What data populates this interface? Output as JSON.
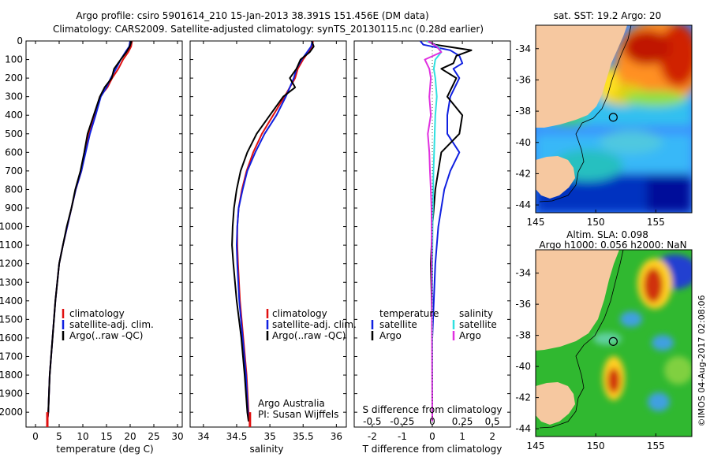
{
  "header": {
    "title_line1": "Argo profile: csiro 5901614_210 15-Jan-2013 38.391S 151.456E (DM data)",
    "title_line2": "Climatology: CARS2009. Satellite-adjusted climatology: synTS_20130115.nc (0.28d earlier)"
  },
  "colors": {
    "climatology": "#e01010",
    "satellite": "#1020e0",
    "argo": "#000000",
    "sal_satellite": "#30e0e0",
    "sal_argo": "#e030e0",
    "land": "#f6c8a0"
  },
  "chart_data": [
    {
      "type": "line",
      "panel": "temperature",
      "xlabel": "temperature (deg C)",
      "xlim": [
        -2,
        31
      ],
      "xticks": [
        "0",
        "5",
        "10",
        "15",
        "20",
        "25",
        "30"
      ],
      "ylim": [
        0,
        2080
      ],
      "yticks": [
        "0",
        "100",
        "200",
        "300",
        "400",
        "500",
        "600",
        "700",
        "800",
        "900",
        "1000",
        "1100",
        "1200",
        "1300",
        "1400",
        "1500",
        "1600",
        "1700",
        "1800",
        "1900",
        "2000"
      ],
      "legend": [
        "climatology",
        "satellite-adj. clim.",
        "Argo(..raw -QC)"
      ],
      "series": [
        {
          "name": "climatology",
          "color": "#e01010",
          "x": [
            20.4,
            20.2,
            19.6,
            18.5,
            17.5,
            16.2,
            15.2,
            13.6,
            12.5,
            11.3,
            10.5,
            9.7,
            8.5,
            7.6,
            6.7,
            5.8,
            5.0,
            4.2,
            3.6,
            3.0,
            2.7,
            2.5
          ],
          "y": [
            0,
            30,
            60,
            100,
            150,
            200,
            250,
            300,
            400,
            500,
            600,
            700,
            800,
            900,
            1000,
            1100,
            1200,
            1400,
            1600,
            1800,
            2000,
            2050
          ]
        },
        {
          "name": "satellite-adj. clim.",
          "color": "#1020e0",
          "x": [
            20.0,
            19.8,
            19.0,
            18.0,
            17.0,
            15.9,
            15.0,
            13.8,
            12.7,
            11.5,
            10.6,
            9.7,
            8.5,
            7.6,
            6.7,
            5.8,
            5.0,
            4.2,
            3.6,
            3.0,
            2.7,
            2.5
          ],
          "y": [
            0,
            30,
            60,
            100,
            150,
            200,
            250,
            300,
            400,
            500,
            600,
            700,
            800,
            900,
            1000,
            1100,
            1200,
            1400,
            1600,
            1800,
            2000,
            2050
          ]
        },
        {
          "name": "Argo(..raw -QC)",
          "color": "#000000",
          "x": [
            20.3,
            19.9,
            19.2,
            18.0,
            16.6,
            16.1,
            14.6,
            13.6,
            12.3,
            11.0,
            10.3,
            9.5,
            8.4,
            7.6,
            6.6,
            5.8,
            5.0,
            4.2,
            3.6,
            3.0,
            2.7,
            2.5
          ],
          "y": [
            0,
            30,
            60,
            100,
            150,
            200,
            250,
            300,
            400,
            500,
            600,
            700,
            800,
            900,
            1000,
            1100,
            1200,
            1400,
            1600,
            1800,
            2000,
            2050
          ]
        }
      ]
    },
    {
      "type": "line",
      "panel": "salinity",
      "xlabel": "salinity",
      "xlim": [
        33.8,
        36.15
      ],
      "xticks": [
        "34",
        "34.5",
        "35",
        "35.5",
        "36"
      ],
      "ylim": [
        0,
        2080
      ],
      "legend": [
        "climatology",
        "satellite-adj. clim.",
        "Argo(..raw -QC)"
      ],
      "annotation": [
        "Argo Australia",
        "PI: Susan Wijffels"
      ],
      "series": [
        {
          "name": "climatology",
          "color": "#e01010",
          "x": [
            35.65,
            35.63,
            35.58,
            35.5,
            35.42,
            35.38,
            35.3,
            35.22,
            35.05,
            34.88,
            34.75,
            34.65,
            34.58,
            34.53,
            34.51,
            34.51,
            34.52,
            34.55,
            34.6,
            34.65,
            34.68,
            34.7
          ],
          "y": [
            0,
            30,
            60,
            100,
            150,
            200,
            250,
            300,
            400,
            500,
            600,
            700,
            800,
            900,
            1000,
            1100,
            1200,
            1400,
            1600,
            1800,
            2000,
            2050
          ]
        },
        {
          "name": "satellite-adj. clim.",
          "color": "#1020e0",
          "x": [
            35.64,
            35.62,
            35.56,
            35.48,
            35.4,
            35.36,
            35.3,
            35.24,
            35.1,
            34.92,
            34.78,
            34.66,
            34.59,
            34.53,
            34.51,
            34.5,
            34.51,
            34.54,
            34.59,
            34.64,
            34.67,
            34.69
          ],
          "y": [
            0,
            30,
            60,
            100,
            150,
            200,
            250,
            300,
            400,
            500,
            600,
            700,
            800,
            900,
            1000,
            1100,
            1200,
            1400,
            1600,
            1800,
            2000,
            2050
          ]
        },
        {
          "name": "Argo(..raw -QC)",
          "color": "#000000",
          "x": [
            35.63,
            35.66,
            35.6,
            35.46,
            35.4,
            35.3,
            35.38,
            35.2,
            35.0,
            34.8,
            34.66,
            34.56,
            34.5,
            34.46,
            34.44,
            34.43,
            34.45,
            34.5,
            34.57,
            34.62,
            34.66,
            34.68
          ],
          "y": [
            0,
            30,
            60,
            100,
            150,
            200,
            250,
            300,
            400,
            500,
            600,
            700,
            800,
            900,
            1000,
            1100,
            1200,
            1400,
            1600,
            1800,
            2000,
            2050
          ]
        }
      ]
    },
    {
      "type": "line",
      "panel": "difference",
      "xlabel_bottom": "T difference from climatology",
      "xlabel_top": "S difference from climatology",
      "xlim": [
        -2.6,
        2.6
      ],
      "xticks_bottom": [
        "-2",
        "-1",
        "0",
        "1",
        "2"
      ],
      "xticks_top": [
        "-0.5",
        "-0.25",
        "0",
        "0.25",
        "0.5"
      ],
      "ylim": [
        0,
        2080
      ],
      "legend_temperature": [
        "temperature",
        "satellite",
        "Argo"
      ],
      "legend_salinity": [
        "salinity",
        "satellite",
        "Argo"
      ],
      "series": [
        {
          "name": "satellite",
          "color": "#1020e0",
          "x": [
            -0.4,
            -0.3,
            0.6,
            0.9,
            1.0,
            0.7,
            0.9,
            0.6,
            0.5,
            0.5,
            0.9,
            0.6,
            0.4,
            0.3,
            0.2,
            0.1,
            0.05,
            0.0,
            0.0,
            0.0
          ],
          "y": [
            0,
            20,
            50,
            80,
            120,
            150,
            200,
            300,
            400,
            500,
            600,
            700,
            800,
            900,
            1000,
            1200,
            1400,
            1600,
            1800,
            2050
          ]
        },
        {
          "name": "Argo",
          "color": "#000000",
          "x": [
            -0.2,
            0.1,
            1.3,
            0.8,
            0.7,
            0.3,
            0.8,
            0.5,
            1.0,
            0.9,
            0.3,
            0.2,
            0.1,
            0.05,
            0.0,
            -0.05,
            -0.02,
            0.0,
            0.0,
            0.0
          ],
          "y": [
            0,
            20,
            50,
            80,
            120,
            150,
            200,
            300,
            400,
            500,
            600,
            700,
            800,
            900,
            1000,
            1200,
            1400,
            1600,
            1800,
            2050
          ]
        },
        {
          "name": "satellite",
          "color": "#30e0e0",
          "x": [
            -0.2,
            0.2,
            0.3,
            0.1,
            0.05,
            0.1,
            0.15,
            0.1,
            0.08,
            0.06,
            0.04,
            0.03,
            0.02,
            0.01,
            0.0,
            0.0,
            0.0
          ],
          "y": [
            0,
            30,
            60,
            100,
            150,
            200,
            300,
            400,
            500,
            600,
            700,
            800,
            900,
            1000,
            1200,
            1600,
            2050
          ]
        },
        {
          "name": "Argo",
          "color": "#e030e0",
          "x": [
            -0.15,
            0.15,
            0.3,
            -0.25,
            -0.1,
            -0.05,
            -0.1,
            -0.05,
            -0.15,
            -0.1,
            -0.08,
            -0.05,
            -0.03,
            -0.02,
            -0.02,
            -0.01,
            0.0
          ],
          "y": [
            0,
            30,
            60,
            100,
            150,
            200,
            300,
            400,
            500,
            600,
            700,
            800,
            900,
            1000,
            1200,
            1600,
            2050
          ]
        }
      ]
    },
    {
      "type": "heatmap",
      "panel": "sst_map",
      "title": "sat. SST: 19.2  Argo: 20",
      "xticks": [
        "145",
        "150",
        "155"
      ],
      "yticks": [
        "-34",
        "-36",
        "-38",
        "-40",
        "-42",
        "-44"
      ],
      "xlim": [
        145,
        158
      ],
      "ylim": [
        -44.5,
        -32.5
      ],
      "argo_position": {
        "lon": 151.456,
        "lat": -38.391
      }
    },
    {
      "type": "heatmap",
      "panel": "sla_map",
      "title_line1": "Altim. SLA: 0.098",
      "title_line2": "Argo h1000: 0.056 h2000: NaN",
      "xticks": [
        "145",
        "150",
        "155"
      ],
      "yticks": [
        "-34",
        "-36",
        "-38",
        "-40",
        "-42",
        "-44"
      ],
      "xlim": [
        145,
        158
      ],
      "ylim": [
        -44.5,
        -32.5
      ],
      "argo_position": {
        "lon": 151.456,
        "lat": -38.391
      }
    }
  ],
  "footer": {
    "copyright": "©IMOS 04-Aug-2017 02:08:06"
  }
}
